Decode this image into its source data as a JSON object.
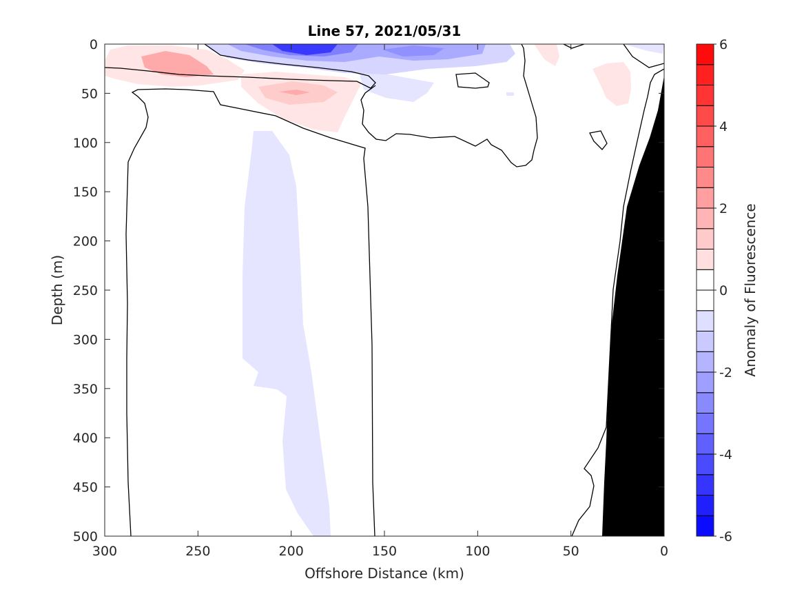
{
  "chart_data": {
    "type": "contour",
    "title": "Line 57, 2021/05/31",
    "xlabel": "Offshore Distance (km)",
    "ylabel": "Depth (m)",
    "xlim": [
      300,
      0
    ],
    "ylim": [
      0,
      500
    ],
    "x_reversed": true,
    "y_reversed": true,
    "x_ticks": [
      "300",
      "250",
      "200",
      "150",
      "100",
      "50",
      "0"
    ],
    "y_ticks": [
      "0",
      "50",
      "100",
      "150",
      "200",
      "250",
      "300",
      "350",
      "400",
      "450",
      "500"
    ],
    "colorbar": {
      "label": "Anomaly of Fluorescence",
      "range": [
        -6,
        6
      ],
      "level_step": 0.5,
      "ticks": [
        "6",
        "4",
        "2",
        "0",
        "-2",
        "-4",
        "-6"
      ],
      "colormap": "blue-white-red",
      "low_color": "#0000ff",
      "high_color": "#ff0000"
    },
    "features": [
      {
        "name": "strong negative anomaly",
        "x_range_km": [
          215,
          165
        ],
        "depth_range_m": [
          0,
          15
        ],
        "value": -4.5
      },
      {
        "name": "negative anomaly",
        "x_range_km": [
          150,
          115
        ],
        "depth_range_m": [
          0,
          15
        ],
        "value": -2.5
      },
      {
        "name": "positive anomaly",
        "x_range_km": [
          285,
          245
        ],
        "depth_range_m": [
          5,
          30
        ],
        "value": 2.5
      },
      {
        "name": "positive anomaly",
        "x_range_km": [
          220,
          170
        ],
        "depth_range_m": [
          40,
          60
        ],
        "value": 2.0
      },
      {
        "name": "weak positive anomaly",
        "x_range_km": [
          40,
          20
        ],
        "depth_range_m": [
          15,
          60
        ],
        "value": 1.0
      },
      {
        "name": "weak negative column",
        "x_range_km": [
          225,
          180
        ],
        "depth_range_m": [
          90,
          500
        ],
        "value": -0.7
      }
    ],
    "bathymetry": {
      "color": "#000000",
      "description": "seafloor near coast",
      "x_km_at_500m": 33
    }
  }
}
